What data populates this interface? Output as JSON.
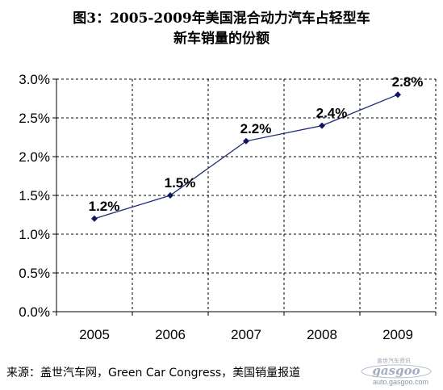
{
  "title_line1": "图3：2005-2009年美国混合动力汽车占轻型车",
  "title_line2": "新车销量的份额",
  "source": "来源：盖世汽车网，Green Car Congress，美国销量报道",
  "watermark": {
    "top_text": "盖世汽车资讯",
    "logo_text": "gasgoo",
    "url": "auto.gasgoo.com"
  },
  "colors": {
    "line": "#1f2a7a",
    "marker": "#0f1660",
    "grid": "#000000",
    "watermark": "#9aa3b3"
  },
  "chart_data": {
    "type": "line",
    "categories": [
      "2005",
      "2006",
      "2007",
      "2008",
      "2009"
    ],
    "values": [
      1.2,
      1.5,
      2.2,
      2.4,
      2.8
    ],
    "data_labels": [
      "1.2%",
      "1.5%",
      "2.2%",
      "2.4%",
      "2.8%"
    ],
    "y_ticks": [
      "0.0%",
      "0.5%",
      "1.0%",
      "1.5%",
      "2.0%",
      "2.5%",
      "3.0%"
    ],
    "ylim": [
      0,
      3.0
    ],
    "y_unit": "%",
    "grid": "horizontal dashed",
    "marker": "diamond",
    "legend": "none"
  }
}
